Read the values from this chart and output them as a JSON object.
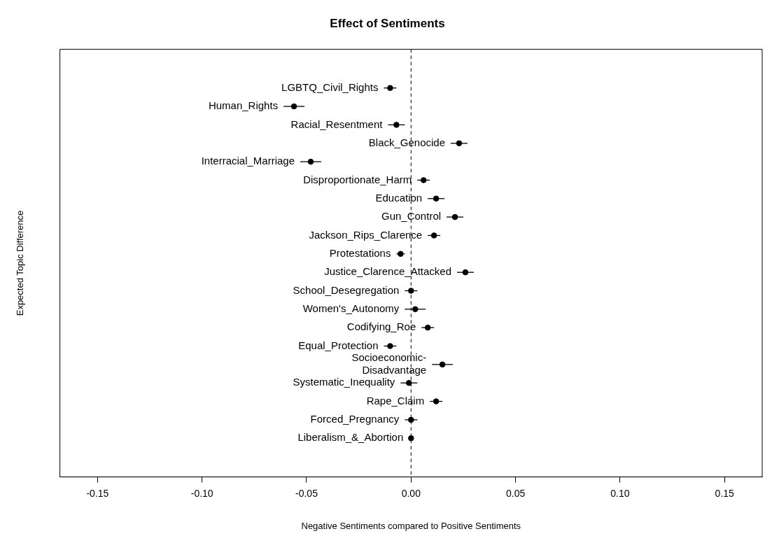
{
  "chart_data": {
    "type": "scatter",
    "orientation": "horizontal",
    "title": "Effect of Sentiments",
    "xlabel": "Negative Sentiments compared to Positive Sentiments",
    "ylabel": "Expected Topic Difference",
    "categories": [
      "LGBTQ_Civil_Rights",
      "Human_Rights",
      "Racial_Resentment",
      "Black_Genocide",
      "Interracial_Marriage",
      "Disproportionate_Harm",
      "Education",
      "Gun_Control",
      "Jackson_Rips_Clarence",
      "Protestations",
      "Justice_Clarence_Attacked",
      "School_Desegregation",
      "Women's_Autonomy",
      "Codifying_Roe",
      "Equal_Protection",
      "Socioeconomic-\nDisadvantage",
      "Systematic_Inequality",
      "Rape_Claim",
      "Forced_Pregnancy",
      "Liberalism_&_Abortion"
    ],
    "values": [
      -0.01,
      -0.056,
      -0.007,
      0.023,
      -0.048,
      0.006,
      0.012,
      0.021,
      0.011,
      -0.005,
      0.026,
      0.0,
      0.002,
      0.008,
      -0.01,
      0.015,
      -0.001,
      0.012,
      0.0,
      0.0
    ],
    "errors": [
      0.003,
      0.005,
      0.004,
      0.004,
      0.005,
      0.003,
      0.004,
      0.004,
      0.003,
      0.002,
      0.004,
      0.003,
      0.005,
      0.003,
      0.003,
      0.005,
      0.004,
      0.003,
      0.003,
      0.001
    ],
    "color": "#000000",
    "marker": "circle",
    "xlim": [
      -0.168,
      0.168
    ],
    "xticks": [
      {
        "value": -0.15,
        "label": "-0.15"
      },
      {
        "value": -0.1,
        "label": "-0.10"
      },
      {
        "value": -0.05,
        "label": "-0.05"
      },
      {
        "value": 0,
        "label": "0.00"
      },
      {
        "value": 0.05,
        "label": "0.05"
      },
      {
        "value": 0.1,
        "label": "0.10"
      },
      {
        "value": 0.15,
        "label": "0.15"
      }
    ],
    "tick_labels": "x",
    "grid": false,
    "legend": false,
    "ref_lines": [
      {
        "axis": "x",
        "value": 0,
        "line_style": "dashed",
        "color": "#000000"
      }
    ]
  }
}
